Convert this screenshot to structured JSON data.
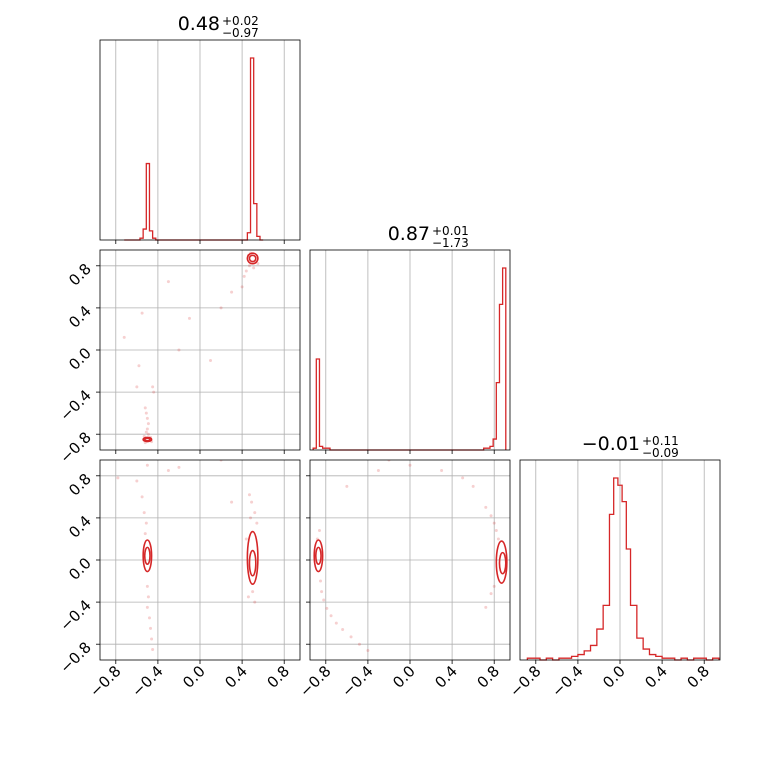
{
  "chart_data": {
    "type": "corner",
    "grid": true,
    "line_color": "#d62728",
    "axis_range": [
      -0.95,
      0.95
    ],
    "ticks": [
      -0.8,
      -0.4,
      0.0,
      0.4,
      0.8
    ],
    "tick_labels": [
      "−0.8",
      "−0.4",
      "0.0",
      "0.4",
      "0.8"
    ],
    "titles": [
      {
        "main": "0.48",
        "upper": "+0.02",
        "lower": "−0.97"
      },
      {
        "main": "0.87",
        "upper": "+0.01",
        "lower": "−1.73"
      },
      {
        "main": "−0.01",
        "upper": "+0.11",
        "lower": "−0.09"
      }
    ],
    "histograms": [
      {
        "parameter": 0,
        "bins": [
          {
            "x0": -0.72,
            "x1": -0.69,
            "value": 0.0
          },
          {
            "x0": -0.69,
            "x1": -0.66,
            "value": 0.0
          },
          {
            "x0": -0.66,
            "x1": -0.63,
            "value": 0.0
          },
          {
            "x0": -0.63,
            "x1": -0.6,
            "value": 0.0
          },
          {
            "x0": -0.6,
            "x1": -0.57,
            "value": 0.0
          },
          {
            "x0": -0.57,
            "x1": -0.54,
            "value": 0.01
          },
          {
            "x0": -0.54,
            "x1": -0.51,
            "value": 0.06
          },
          {
            "x0": -0.51,
            "x1": -0.48,
            "value": 0.42
          },
          {
            "x0": -0.48,
            "x1": -0.45,
            "value": 0.05
          },
          {
            "x0": -0.45,
            "x1": -0.42,
            "value": 0.01
          },
          {
            "x0": -0.42,
            "x1": 0.45,
            "value": 0.0
          },
          {
            "x0": 0.45,
            "x1": 0.48,
            "value": 0.04
          },
          {
            "x0": 0.48,
            "x1": 0.51,
            "value": 1.0
          },
          {
            "x0": 0.51,
            "x1": 0.54,
            "value": 0.2
          },
          {
            "x0": 0.54,
            "x1": 0.57,
            "value": 0.02
          },
          {
            "x0": 0.57,
            "x1": 0.6,
            "value": 0.0
          }
        ]
      },
      {
        "parameter": 1,
        "bins": [
          {
            "x0": -0.92,
            "x1": -0.89,
            "value": 0.01
          },
          {
            "x0": -0.89,
            "x1": -0.86,
            "value": 0.5
          },
          {
            "x0": -0.86,
            "x1": -0.83,
            "value": 0.02
          },
          {
            "x0": -0.83,
            "x1": -0.76,
            "value": 0.01
          },
          {
            "x0": -0.76,
            "x1": 0.7,
            "value": 0.0
          },
          {
            "x0": 0.7,
            "x1": 0.76,
            "value": 0.01
          },
          {
            "x0": 0.76,
            "x1": 0.79,
            "value": 0.02
          },
          {
            "x0": 0.79,
            "x1": 0.82,
            "value": 0.06
          },
          {
            "x0": 0.82,
            "x1": 0.85,
            "value": 0.37
          },
          {
            "x0": 0.85,
            "x1": 0.88,
            "value": 0.8
          },
          {
            "x0": 0.88,
            "x1": 0.91,
            "value": 1.0
          }
        ]
      },
      {
        "parameter": 2,
        "bins": [
          {
            "x0": -0.88,
            "x1": -0.82,
            "value": 0.01
          },
          {
            "x0": -0.82,
            "x1": -0.76,
            "value": 0.01
          },
          {
            "x0": -0.76,
            "x1": -0.7,
            "value": 0.0
          },
          {
            "x0": -0.7,
            "x1": -0.64,
            "value": 0.01
          },
          {
            "x0": -0.64,
            "x1": -0.58,
            "value": 0.0
          },
          {
            "x0": -0.58,
            "x1": -0.52,
            "value": 0.01
          },
          {
            "x0": -0.52,
            "x1": -0.46,
            "value": 0.01
          },
          {
            "x0": -0.46,
            "x1": -0.4,
            "value": 0.02
          },
          {
            "x0": -0.4,
            "x1": -0.34,
            "value": 0.03
          },
          {
            "x0": -0.34,
            "x1": -0.28,
            "value": 0.05
          },
          {
            "x0": -0.28,
            "x1": -0.22,
            "value": 0.08
          },
          {
            "x0": -0.22,
            "x1": -0.16,
            "value": 0.17
          },
          {
            "x0": -0.16,
            "x1": -0.1,
            "value": 0.3
          },
          {
            "x0": -0.1,
            "x1": -0.06,
            "value": 0.8
          },
          {
            "x0": -0.06,
            "x1": -0.02,
            "value": 1.0
          },
          {
            "x0": -0.02,
            "x1": 0.02,
            "value": 0.96
          },
          {
            "x0": 0.02,
            "x1": 0.06,
            "value": 0.87
          },
          {
            "x0": 0.06,
            "x1": 0.1,
            "value": 0.61
          },
          {
            "x0": 0.1,
            "x1": 0.16,
            "value": 0.3
          },
          {
            "x0": 0.16,
            "x1": 0.22,
            "value": 0.12
          },
          {
            "x0": 0.22,
            "x1": 0.28,
            "value": 0.06
          },
          {
            "x0": 0.28,
            "x1": 0.34,
            "value": 0.03
          },
          {
            "x0": 0.34,
            "x1": 0.4,
            "value": 0.02
          },
          {
            "x0": 0.4,
            "x1": 0.46,
            "value": 0.01
          },
          {
            "x0": 0.46,
            "x1": 0.52,
            "value": 0.01
          },
          {
            "x0": 0.52,
            "x1": 0.58,
            "value": 0.0
          },
          {
            "x0": 0.58,
            "x1": 0.64,
            "value": 0.01
          },
          {
            "x0": 0.64,
            "x1": 0.7,
            "value": 0.0
          },
          {
            "x0": 0.7,
            "x1": 0.76,
            "value": 0.01
          },
          {
            "x0": 0.76,
            "x1": 0.82,
            "value": 0.01
          },
          {
            "x0": 0.82,
            "x1": 0.88,
            "value": 0.0
          },
          {
            "x0": 0.88,
            "x1": 0.94,
            "value": 0.01
          }
        ]
      }
    ],
    "pairs": [
      {
        "x_param": 0,
        "y_param": 1,
        "contours": [
          {
            "cx": -0.5,
            "cy": -0.85,
            "rx": 0.04,
            "ry": 0.02
          },
          {
            "cx": -0.5,
            "cy": -0.85,
            "rx": 0.025,
            "ry": 0.012
          },
          {
            "cx": 0.5,
            "cy": 0.87,
            "rx": 0.05,
            "ry": 0.05
          },
          {
            "cx": 0.5,
            "cy": 0.87,
            "rx": 0.03,
            "ry": 0.03
          }
        ],
        "points": [
          [
            -0.52,
            -0.55
          ],
          [
            -0.51,
            -0.6
          ],
          [
            -0.5,
            -0.65
          ],
          [
            -0.49,
            -0.7
          ],
          [
            -0.5,
            -0.75
          ],
          [
            -0.51,
            -0.78
          ],
          [
            -0.49,
            -0.8
          ],
          [
            -0.53,
            -0.82
          ],
          [
            -0.47,
            -0.83
          ],
          [
            -0.52,
            -0.88
          ],
          [
            -0.46,
            -0.87
          ],
          [
            -0.44,
            -0.4
          ],
          [
            -0.45,
            -0.35
          ],
          [
            -0.58,
            -0.15
          ],
          [
            -0.72,
            0.12
          ],
          [
            -0.55,
            0.35
          ],
          [
            -0.3,
            0.65
          ],
          [
            -0.1,
            0.3
          ],
          [
            0.2,
            0.4
          ],
          [
            0.4,
            0.6
          ],
          [
            0.44,
            0.75
          ],
          [
            0.47,
            0.8
          ],
          [
            0.48,
            0.92
          ],
          [
            0.53,
            0.84
          ],
          [
            0.55,
            0.82
          ],
          [
            0.51,
            0.78
          ],
          [
            0.46,
            0.9
          ],
          [
            0.42,
            0.7
          ],
          [
            0.3,
            0.55
          ],
          [
            -0.2,
            0.0
          ],
          [
            -0.6,
            -0.35
          ],
          [
            0.1,
            -0.1
          ]
        ]
      },
      {
        "x_param": 0,
        "y_param": 2,
        "contours": [
          {
            "cx": -0.5,
            "cy": 0.04,
            "rx": 0.04,
            "ry": 0.15
          },
          {
            "cx": -0.5,
            "cy": 0.04,
            "rx": 0.025,
            "ry": 0.08
          },
          {
            "cx": 0.5,
            "cy": 0.02,
            "rx": 0.05,
            "ry": 0.25
          },
          {
            "cx": 0.5,
            "cy": -0.03,
            "rx": 0.03,
            "ry": 0.12
          }
        ],
        "points": [
          [
            -0.5,
            -0.25
          ],
          [
            -0.49,
            -0.35
          ],
          [
            -0.5,
            -0.45
          ],
          [
            -0.48,
            -0.55
          ],
          [
            -0.47,
            -0.65
          ],
          [
            -0.46,
            -0.75
          ],
          [
            -0.45,
            -0.85
          ],
          [
            -0.52,
            0.25
          ],
          [
            -0.51,
            0.35
          ],
          [
            -0.53,
            0.45
          ],
          [
            -0.55,
            0.6
          ],
          [
            -0.6,
            0.75
          ],
          [
            -0.78,
            0.78
          ],
          [
            -0.5,
            0.9
          ],
          [
            -0.3,
            0.85
          ],
          [
            0.48,
            0.4
          ],
          [
            0.52,
            0.45
          ],
          [
            0.49,
            0.55
          ],
          [
            0.47,
            0.62
          ],
          [
            0.5,
            -0.3
          ],
          [
            0.52,
            -0.4
          ],
          [
            0.46,
            -0.35
          ],
          [
            0.54,
            0.35
          ],
          [
            0.44,
            0.2
          ],
          [
            0.3,
            0.55
          ],
          [
            -0.2,
            0.88
          ],
          [
            0.2,
            0.95
          ]
        ]
      },
      {
        "x_param": 1,
        "y_param": 2,
        "contours": [
          {
            "cx": -0.87,
            "cy": 0.04,
            "rx": 0.04,
            "ry": 0.15
          },
          {
            "cx": -0.87,
            "cy": 0.04,
            "rx": 0.025,
            "ry": 0.08
          },
          {
            "cx": 0.87,
            "cy": -0.02,
            "rx": 0.05,
            "ry": 0.2
          },
          {
            "cx": 0.88,
            "cy": -0.03,
            "rx": 0.03,
            "ry": 0.1
          }
        ],
        "points": [
          [
            -0.85,
            -0.2
          ],
          [
            -0.84,
            -0.3
          ],
          [
            -0.82,
            -0.38
          ],
          [
            -0.79,
            -0.46
          ],
          [
            -0.75,
            -0.53
          ],
          [
            -0.7,
            -0.6
          ],
          [
            -0.64,
            -0.66
          ],
          [
            -0.56,
            -0.73
          ],
          [
            -0.48,
            -0.8
          ],
          [
            -0.4,
            -0.86
          ],
          [
            -0.88,
            0.2
          ],
          [
            -0.86,
            0.28
          ],
          [
            -0.6,
            0.7
          ],
          [
            -0.3,
            0.85
          ],
          [
            0.0,
            0.9
          ],
          [
            0.3,
            0.85
          ],
          [
            0.6,
            0.7
          ],
          [
            0.72,
            0.5
          ],
          [
            0.77,
            0.42
          ],
          [
            0.8,
            0.35
          ],
          [
            0.82,
            0.28
          ],
          [
            0.84,
            0.2
          ],
          [
            0.8,
            -0.25
          ],
          [
            0.77,
            -0.32
          ],
          [
            0.72,
            -0.45
          ],
          [
            0.5,
            0.78
          ],
          [
            -0.2,
            0.95
          ]
        ]
      }
    ]
  }
}
